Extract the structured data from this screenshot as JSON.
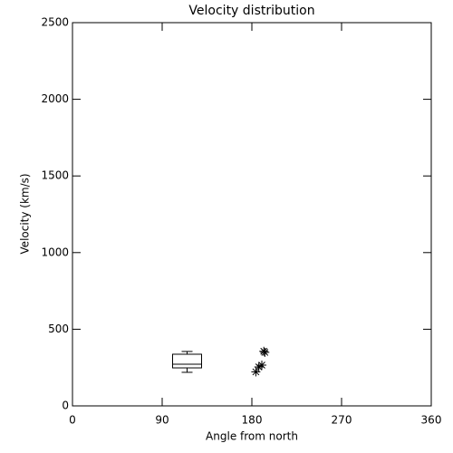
{
  "chart_data": {
    "type": "scatter",
    "title": "Velocity distribution",
    "xlabel": "Angle from north",
    "ylabel": "Velocity (km/s)",
    "xlim": [
      0,
      360
    ],
    "xticks": [
      0,
      90,
      180,
      270,
      360
    ],
    "ylim": [
      0,
      2500
    ],
    "yticks": [
      0,
      500,
      1000,
      1500,
      2000,
      2500
    ],
    "box": {
      "x": 115,
      "min": 219,
      "q1": 248,
      "median": 272,
      "q3": 337,
      "max": 355
    },
    "x": [
      184,
      187,
      190,
      193,
      192
    ],
    "y": [
      222,
      254,
      266,
      349,
      356
    ],
    "color": "#000000"
  }
}
